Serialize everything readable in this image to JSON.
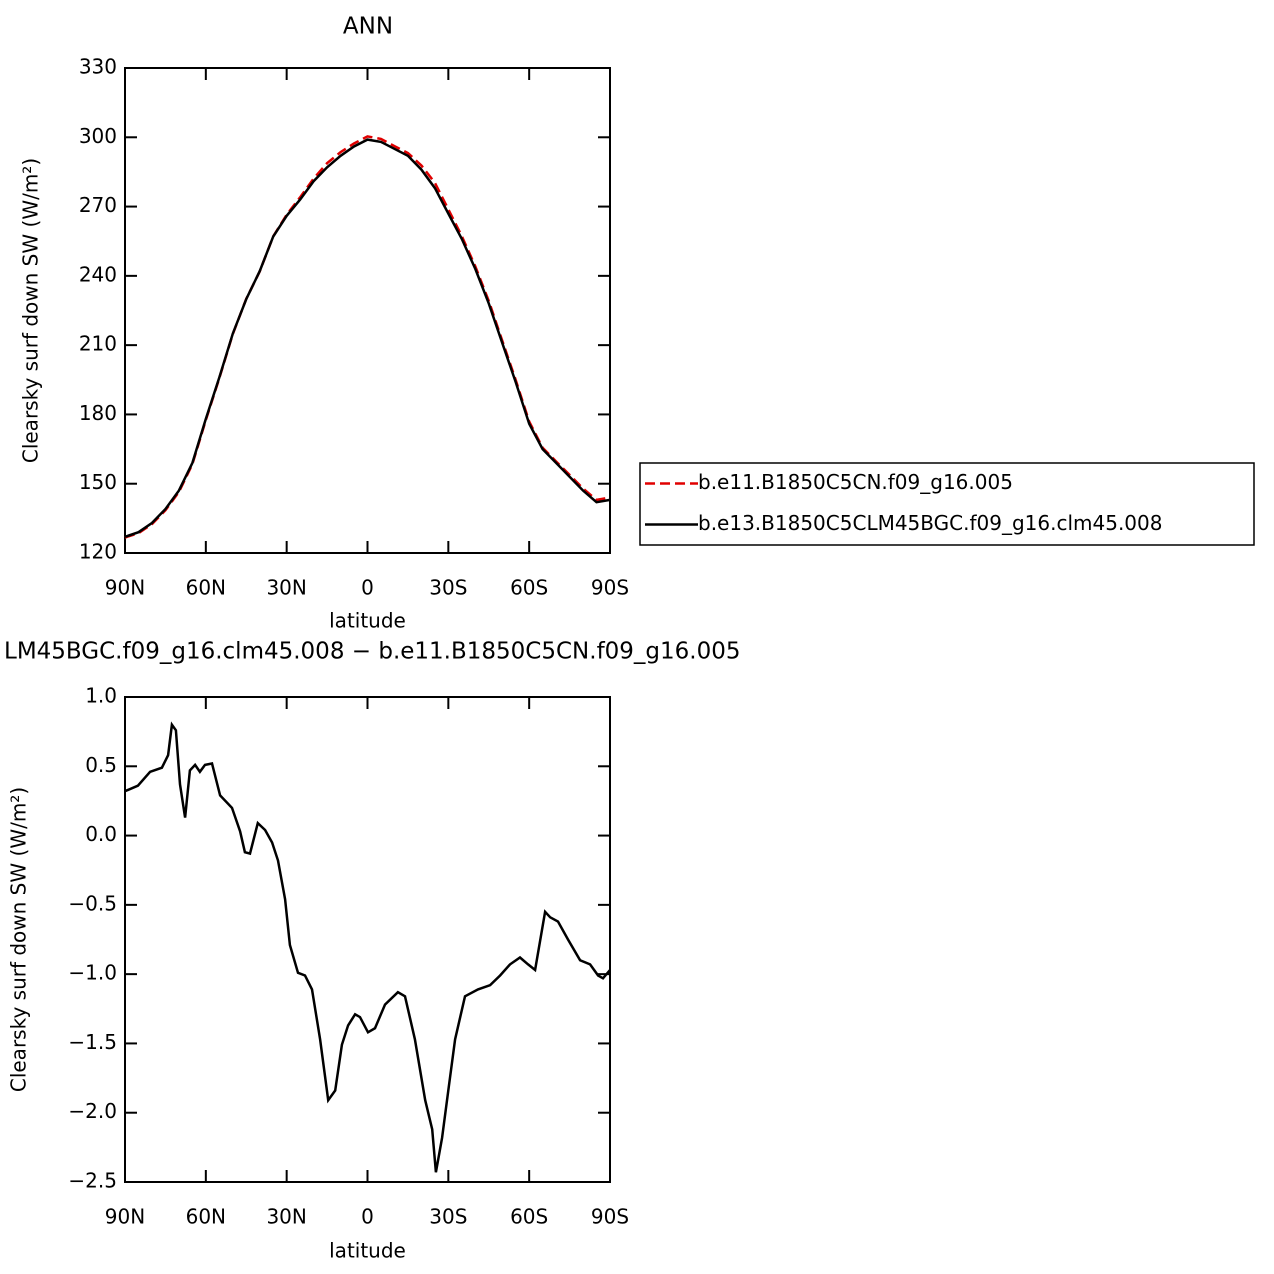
{
  "chart_data": [
    {
      "type": "line",
      "title": "ANN",
      "xlabel": "latitude",
      "ylabel": "Clearsky surf down SW (W/m²)",
      "x": [
        90,
        85,
        80,
        75,
        70,
        65,
        60,
        55,
        50,
        45,
        40,
        35,
        30,
        25,
        20,
        15,
        10,
        5,
        0,
        -5,
        -10,
        -15,
        -20,
        -25,
        -30,
        -35,
        -40,
        -45,
        -50,
        -55,
        -60,
        -65,
        -70,
        -75,
        -80,
        -85,
        -90
      ],
      "series": [
        {
          "name": "b.e11.B1850C5CN.f09_g16.005",
          "color": "#e00000",
          "line_style": "dashed",
          "values": [
            126.7,
            128.6,
            132.5,
            138.5,
            146.4,
            158.5,
            177.5,
            195.7,
            214.8,
            230.1,
            241.9,
            257.1,
            266.5,
            274,
            282.1,
            288.8,
            293.6,
            297.3,
            300.4,
            299.3,
            296.2,
            293.2,
            287.8,
            280.3,
            268.8,
            257.2,
            244.1,
            229.1,
            212,
            194.9,
            176.9,
            165.6,
            159.6,
            153.8,
            147.9,
            143,
            144
          ]
        },
        {
          "name": "b.e13.B1850C5CLM45BGC.f09_g16.clm45.008",
          "color": "#000000",
          "line_style": "solid",
          "values": [
            127,
            129,
            133,
            139,
            147,
            159,
            178,
            196,
            215,
            230,
            242,
            257,
            266,
            273,
            281,
            287,
            292,
            296,
            299,
            298,
            295,
            292,
            286,
            278,
            267,
            256,
            243,
            228,
            211,
            194,
            176,
            165,
            159,
            153,
            147,
            142,
            143
          ]
        }
      ],
      "xlim": [
        90,
        -90
      ],
      "xticks": [
        {
          "value": 90,
          "label": "90N"
        },
        {
          "value": 60,
          "label": "60N"
        },
        {
          "value": 30,
          "label": "30N"
        },
        0,
        {
          "value": -30,
          "label": "30S"
        },
        {
          "value": -60,
          "label": "60S"
        },
        {
          "value": -90,
          "label": "90S"
        }
      ],
      "ylim": [
        120,
        330
      ],
      "yticks": [
        120,
        150,
        180,
        210,
        240,
        270,
        300,
        330
      ],
      "legend": "right"
    },
    {
      "type": "line",
      "title": "LM45BGC.f09_g16.clm45.008 − b.e11.B1850C5CN.f09_g16.005",
      "xlabel": "latitude",
      "ylabel": "Clearsky surf down SW (W/m²)",
      "x": [
        90,
        85.2,
        80.7,
        76.3,
        74,
        72.6,
        71.1,
        69.6,
        67.7,
        65.9,
        64,
        62.2,
        60.3,
        57.7,
        54.7,
        50.3,
        47.3,
        45.5,
        43.6,
        40.7,
        38,
        35.4,
        33.2,
        30.6,
        28.8,
        25.8,
        23.2,
        20.6,
        17.6,
        15.8,
        14.6,
        12,
        9.5,
        7.2,
        4.6,
        2.8,
        -0.2,
        -2.8,
        -6.5,
        -11.3,
        -13.9,
        -17.6,
        -21.4,
        -24,
        -25.4,
        -27.7,
        -30,
        -32.5,
        -36.2,
        -41,
        -45.5,
        -49.2,
        -52.9,
        -56.6,
        -59.6,
        -62.2,
        -65.9,
        -67.8,
        -70.7,
        -74.4,
        -78.9,
        -82.6,
        -85.6,
        -87.4,
        -90
      ],
      "series": [
        {
          "color": "#000000",
          "line_style": "solid",
          "values": [
            0.32,
            0.36,
            0.46,
            0.49,
            0.58,
            0.8,
            0.76,
            0.37,
            0.13,
            0.47,
            0.51,
            0.46,
            0.51,
            0.52,
            0.29,
            0.2,
            0.03,
            -0.12,
            -0.13,
            0.09,
            0.04,
            -0.05,
            -0.18,
            -0.46,
            -0.79,
            -0.99,
            -1.01,
            -1.11,
            -1.47,
            -1.73,
            -1.91,
            -1.84,
            -1.51,
            -1.37,
            -1.29,
            -1.31,
            -1.42,
            -1.39,
            -1.22,
            -1.13,
            -1.16,
            -1.47,
            -1.91,
            -2.12,
            -2.43,
            -2.18,
            -1.84,
            -1.47,
            -1.16,
            -1.11,
            -1.08,
            -1.01,
            -0.93,
            -0.88,
            -0.93,
            -0.97,
            -0.55,
            -0.59,
            -0.62,
            -0.75,
            -0.9,
            -0.93,
            -1.01,
            -1.03,
            -0.97
          ]
        }
      ],
      "xlim": [
        90,
        -90
      ],
      "xticks": [
        {
          "value": 90,
          "label": "90N"
        },
        {
          "value": 60,
          "label": "60N"
        },
        {
          "value": 30,
          "label": "30N"
        },
        0,
        {
          "value": -30,
          "label": "30S"
        },
        {
          "value": -60,
          "label": "60S"
        },
        {
          "value": -90,
          "label": "90S"
        }
      ],
      "ylim": [
        -2.5,
        1.0
      ],
      "yticks": [
        {
          "value": 1.0,
          "label": "1.0"
        },
        {
          "value": 0.5,
          "label": "0.5"
        },
        {
          "value": 0.0,
          "label": "0.0"
        },
        {
          "value": -0.5,
          "label": "−0.5"
        },
        {
          "value": -1.0,
          "label": "−1.0"
        },
        {
          "value": -1.5,
          "label": "−1.5"
        },
        {
          "value": -2.0,
          "label": "−2.0"
        },
        {
          "value": -2.5,
          "label": "−2.5"
        }
      ]
    }
  ]
}
